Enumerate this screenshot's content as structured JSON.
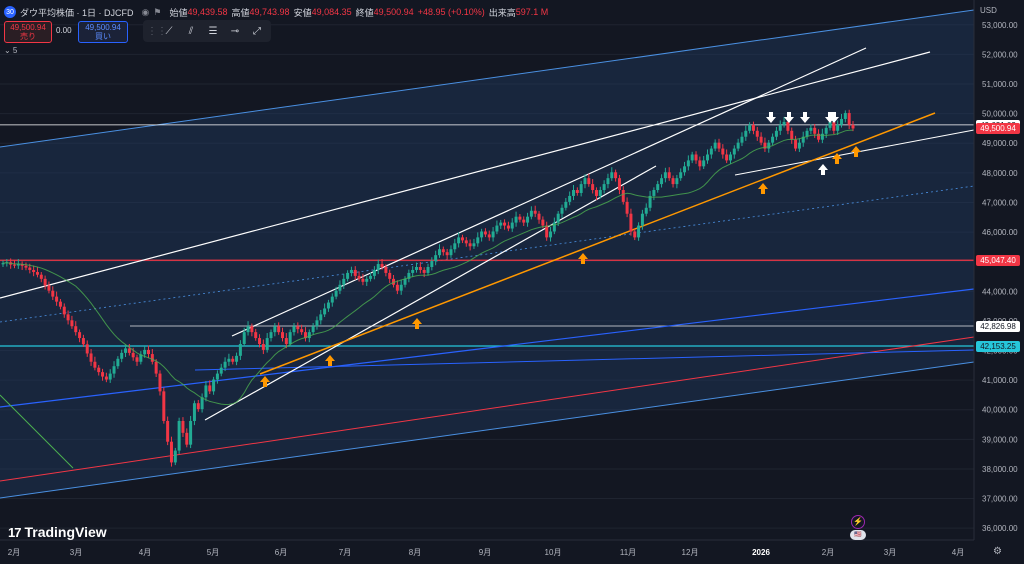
{
  "header": {
    "symbol": "ダウ平均株価 · 1日 · DJCFD",
    "open_label": "始値",
    "open": "49,439.58",
    "high_label": "高値",
    "high": "49,743.98",
    "low_label": "安値",
    "low": "49,084.35",
    "close_label": "終値",
    "close": "49,500.94",
    "change": "+48.95 (+0.10%)",
    "volume_label": "出来高",
    "volume": "597.1 M"
  },
  "trade": {
    "sell_price": "49,500.94",
    "sell_label": "売り",
    "spread": "0.00",
    "buy_price": "49,500.94",
    "buy_label": "買い"
  },
  "indicator_row": "⌄ 5",
  "currency": "USD",
  "branding": "TradingView",
  "colors": {
    "background": "#131722",
    "up": "#22ab94",
    "down": "#f23645",
    "channel_fill": "#1e3a5f",
    "orange_trend": "#ff9800",
    "white_line": "#ffffff",
    "blue_line": "#2962ff",
    "red_line": "#f23645",
    "cyan_line": "#26c6da",
    "ma": "#4caf50"
  },
  "chart_data": {
    "type": "candlestick",
    "xlabel": "",
    "ylabel": "",
    "ylim": [
      35600,
      53500
    ],
    "y_ticks": [
      36000,
      37000,
      38000,
      39000,
      40000,
      41000,
      42000,
      43000,
      44000,
      45000,
      46000,
      47000,
      48000,
      49000,
      50000,
      51000,
      52000,
      53000
    ],
    "y_tick_labels": [
      "36,000.00",
      "37,000.00",
      "38,000.00",
      "39,000.00",
      "40,000.00",
      "41,000.00",
      "42,000.00",
      "43,000.00",
      "44,000.00",
      "45,000.00",
      "46,000.00",
      "47,000.00",
      "48,000.00",
      "49,000.00",
      "50,000.00",
      "51,000.00",
      "52,000.00",
      "53,000.00"
    ],
    "x_tick_labels": [
      "2月",
      "3月",
      "4月",
      "5月",
      "6月",
      "7月",
      "8月",
      "9月",
      "10月",
      "11月",
      "12月",
      "2026",
      "2月",
      "3月",
      "4月"
    ],
    "price_labels": [
      {
        "value": 49621.03,
        "text": "49,621.03",
        "bg": "#ffffff",
        "fg": "#131722"
      },
      {
        "value": 49500.94,
        "text": "49,500.94",
        "bg": "#f23645",
        "fg": "#ffffff"
      },
      {
        "value": 45047.4,
        "text": "45,047.40",
        "bg": "#f23645",
        "fg": "#ffffff"
      },
      {
        "value": 42826.98,
        "text": "42,826.98",
        "bg": "#ffffff",
        "fg": "#131722"
      },
      {
        "value": 42153.25,
        "text": "42,153.25",
        "bg": "#26c6da",
        "fg": "#131722"
      }
    ],
    "approx_closes": [
      44950,
      44980,
      44900,
      44870,
      44920,
      44860,
      44800,
      44720,
      44650,
      44560,
      44420,
      44200,
      44020,
      43820,
      43650,
      43480,
      43220,
      43020,
      42820,
      42620,
      42420,
      42210,
      41900,
      41620,
      41420,
      41270,
      41120,
      41020,
      41220,
      41470,
      41720,
      41920,
      42070,
      41920,
      41770,
      41620,
      41870,
      42020,
      41880,
      41620,
      41220,
      40620,
      39620,
      38920,
      38220,
      38620,
      39620,
      39220,
      38820,
      39620,
      40220,
      40020,
      40420,
      40820,
      40620,
      41020,
      41220,
      41420,
      41620,
      41720,
      41620,
      41820,
      42220,
      42620,
      42820,
      42620,
      42420,
      42220,
      42020,
      42420,
      42620,
      42820,
      42620,
      42420,
      42220,
      42620,
      42820,
      42720,
      42620,
      42420,
      42620,
      42820,
      43020,
      43220,
      43420,
      43620,
      43820,
      44020,
      44220,
      44420,
      44620,
      44720,
      44520,
      44420,
      44320,
      44420,
      44520,
      44720,
      44920,
      44820,
      44620,
      44420,
      44220,
      44020,
      44220,
      44420,
      44620,
      44720,
      44820,
      44720,
      44620,
      44820,
      45020,
      45220,
      45420,
      45320,
      45220,
      45420,
      45620,
      45820,
      45720,
      45620,
      45520,
      45620,
      45820,
      46020,
      45920,
      45820,
      46020,
      46220,
      46320,
      46220,
      46120,
      46320,
      46520,
      46420,
      46320,
      46520,
      46720,
      46620,
      46420,
      46220,
      45820,
      46020,
      46320,
      46620,
      46820,
      47020,
      47220,
      47420,
      47320,
      47620,
      47820,
      47620,
      47420,
      47220,
      47420,
      47620,
      47820,
      48020,
      47820,
      47420,
      47020,
      46620,
      46020,
      45820,
      46220,
      46620,
      46820,
      47220,
      47420,
      47620,
      47820,
      48020,
      47820,
      47620,
      47820,
      48020,
      48220,
      48420,
      48620,
      48420,
      48220,
      48420,
      48620,
      48820,
      49020,
      48820,
      48620,
      48420,
      48620,
      48820,
      49020,
      49220,
      49420,
      49620,
      49420,
      49220,
      49020,
      48820,
      49020,
      49220,
      49420,
      49620,
      49720,
      49420,
      49120,
      48820,
      49020,
      49220,
      49420,
      49520,
      49320,
      49120,
      49320,
      49520,
      49720,
      49420,
      49620,
      49820,
      50020,
      49620,
      49500
    ]
  }
}
